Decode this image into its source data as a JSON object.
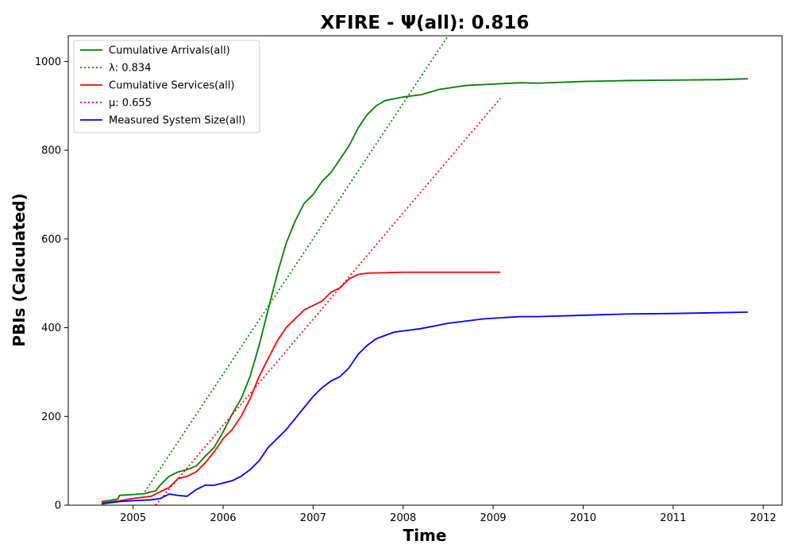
{
  "chart_data": {
    "type": "line",
    "title": "XFIRE -  Ψ(all): 0.816",
    "xlabel": "Time",
    "ylabel": "PBIs (Calculated)",
    "xlim": [
      2004.28,
      2012.21
    ],
    "ylim": [
      0,
      1058
    ],
    "x_ticks": [
      2005,
      2006,
      2007,
      2008,
      2009,
      2010,
      2011,
      2012
    ],
    "y_ticks": [
      0,
      200,
      400,
      600,
      800,
      1000
    ],
    "legend_position": "top-left",
    "grid": false,
    "series": [
      {
        "name": "Cumulative Arrivals(all)",
        "color": "#008000",
        "style": "solid",
        "points": [
          [
            2004.65,
            8
          ],
          [
            2004.75,
            11
          ],
          [
            2004.83,
            14
          ],
          [
            2004.85,
            22
          ],
          [
            2005.0,
            24
          ],
          [
            2005.13,
            26
          ],
          [
            2005.2,
            30
          ],
          [
            2005.25,
            32
          ],
          [
            2005.3,
            45
          ],
          [
            2005.4,
            65
          ],
          [
            2005.5,
            75
          ],
          [
            2005.6,
            80
          ],
          [
            2005.7,
            88
          ],
          [
            2005.8,
            110
          ],
          [
            2005.9,
            130
          ],
          [
            2006.0,
            165
          ],
          [
            2006.1,
            205
          ],
          [
            2006.2,
            240
          ],
          [
            2006.3,
            290
          ],
          [
            2006.4,
            360
          ],
          [
            2006.5,
            440
          ],
          [
            2006.6,
            520
          ],
          [
            2006.7,
            590
          ],
          [
            2006.8,
            640
          ],
          [
            2006.9,
            680
          ],
          [
            2007.0,
            700
          ],
          [
            2007.1,
            730
          ],
          [
            2007.2,
            750
          ],
          [
            2007.3,
            780
          ],
          [
            2007.4,
            810
          ],
          [
            2007.5,
            850
          ],
          [
            2007.6,
            880
          ],
          [
            2007.7,
            900
          ],
          [
            2007.8,
            912
          ],
          [
            2008.0,
            920
          ],
          [
            2008.2,
            925
          ],
          [
            2008.4,
            937
          ],
          [
            2008.7,
            946
          ],
          [
            2009.0,
            949
          ],
          [
            2009.3,
            952
          ],
          [
            2009.5,
            951
          ],
          [
            2010.0,
            955
          ],
          [
            2010.5,
            957
          ],
          [
            2011.0,
            958
          ],
          [
            2011.5,
            959
          ],
          [
            2011.83,
            961
          ]
        ]
      },
      {
        "name": "λ: 0.834",
        "color": "#008000",
        "style": "dotted",
        "points": [
          [
            2005.13,
            30
          ],
          [
            2008.5,
            1058
          ]
        ]
      },
      {
        "name": "Cumulative Services(all)",
        "color": "#ff0000",
        "style": "solid",
        "points": [
          [
            2004.65,
            5
          ],
          [
            2004.85,
            10
          ],
          [
            2005.0,
            15
          ],
          [
            2005.2,
            20
          ],
          [
            2005.3,
            30
          ],
          [
            2005.4,
            40
          ],
          [
            2005.5,
            60
          ],
          [
            2005.6,
            65
          ],
          [
            2005.7,
            75
          ],
          [
            2005.8,
            95
          ],
          [
            2005.9,
            120
          ],
          [
            2006.0,
            150
          ],
          [
            2006.1,
            170
          ],
          [
            2006.2,
            200
          ],
          [
            2006.3,
            240
          ],
          [
            2006.4,
            290
          ],
          [
            2006.5,
            330
          ],
          [
            2006.6,
            370
          ],
          [
            2006.7,
            400
          ],
          [
            2006.8,
            420
          ],
          [
            2006.9,
            440
          ],
          [
            2007.0,
            450
          ],
          [
            2007.1,
            460
          ],
          [
            2007.2,
            480
          ],
          [
            2007.3,
            490
          ],
          [
            2007.4,
            510
          ],
          [
            2007.5,
            520
          ],
          [
            2007.6,
            523
          ],
          [
            2008.0,
            525
          ],
          [
            2009.08,
            525
          ]
        ]
      },
      {
        "name": "μ: 0.655",
        "color": "#ff0000",
        "style": "dotted",
        "points": [
          [
            2005.25,
            0
          ],
          [
            2009.08,
            917
          ]
        ]
      },
      {
        "name": "Measured System Size(all)",
        "color": "#0000ff",
        "style": "solid",
        "points": [
          [
            2004.65,
            3
          ],
          [
            2004.85,
            8
          ],
          [
            2005.0,
            10
          ],
          [
            2005.2,
            12
          ],
          [
            2005.3,
            15
          ],
          [
            2005.4,
            25
          ],
          [
            2005.5,
            22
          ],
          [
            2005.6,
            20
          ],
          [
            2005.7,
            35
          ],
          [
            2005.8,
            45
          ],
          [
            2005.9,
            45
          ],
          [
            2006.0,
            50
          ],
          [
            2006.1,
            55
          ],
          [
            2006.2,
            65
          ],
          [
            2006.3,
            80
          ],
          [
            2006.4,
            100
          ],
          [
            2006.5,
            130
          ],
          [
            2006.6,
            150
          ],
          [
            2006.7,
            170
          ],
          [
            2006.8,
            195
          ],
          [
            2006.9,
            220
          ],
          [
            2007.0,
            245
          ],
          [
            2007.1,
            265
          ],
          [
            2007.2,
            280
          ],
          [
            2007.3,
            290
          ],
          [
            2007.4,
            310
          ],
          [
            2007.5,
            340
          ],
          [
            2007.6,
            360
          ],
          [
            2007.7,
            375
          ],
          [
            2007.9,
            390
          ],
          [
            2008.2,
            398
          ],
          [
            2008.5,
            410
          ],
          [
            2008.9,
            420
          ],
          [
            2009.3,
            425
          ],
          [
            2009.5,
            425
          ],
          [
            2010.0,
            428
          ],
          [
            2010.5,
            431
          ],
          [
            2011.0,
            432
          ],
          [
            2011.83,
            435
          ]
        ]
      }
    ]
  }
}
